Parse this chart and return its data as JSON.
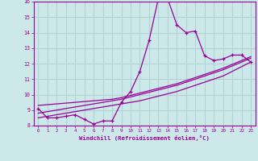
{
  "x": [
    0,
    1,
    2,
    3,
    4,
    5,
    6,
    7,
    8,
    9,
    10,
    11,
    12,
    13,
    14,
    15,
    16,
    17,
    18,
    19,
    20,
    21,
    22,
    23
  ],
  "y_main": [
    9.1,
    8.5,
    8.5,
    8.6,
    8.7,
    8.4,
    8.1,
    8.3,
    8.3,
    9.5,
    10.2,
    11.5,
    13.5,
    16.2,
    16.2,
    14.5,
    14.0,
    14.1,
    12.5,
    12.2,
    12.3,
    12.55,
    12.55,
    12.1
  ],
  "y_linear1": [
    8.5,
    8.6,
    8.7,
    8.8,
    8.9,
    9.0,
    9.1,
    9.2,
    9.3,
    9.4,
    9.5,
    9.6,
    9.75,
    9.9,
    10.05,
    10.2,
    10.4,
    10.6,
    10.8,
    11.0,
    11.2,
    11.5,
    11.8,
    12.1
  ],
  "y_linear2": [
    8.8,
    8.9,
    9.0,
    9.1,
    9.2,
    9.3,
    9.4,
    9.5,
    9.6,
    9.7,
    9.85,
    10.0,
    10.15,
    10.3,
    10.45,
    10.6,
    10.8,
    11.0,
    11.2,
    11.4,
    11.6,
    11.85,
    12.1,
    12.35
  ],
  "y_linear3": [
    9.3,
    9.35,
    9.4,
    9.45,
    9.5,
    9.55,
    9.6,
    9.65,
    9.7,
    9.8,
    9.95,
    10.1,
    10.25,
    10.4,
    10.55,
    10.7,
    10.9,
    11.1,
    11.3,
    11.5,
    11.7,
    11.95,
    12.2,
    12.45
  ],
  "color": "#990099",
  "background": "#cce8e8",
  "grid_color": "#b0d4d4",
  "xlabel": "Windchill (Refroidissement éolien,°C)",
  "ylim": [
    8,
    16
  ],
  "xlim": [
    -0.5,
    23.5
  ],
  "yticks": [
    8,
    9,
    10,
    11,
    12,
    13,
    14,
    15,
    16
  ],
  "xticks": [
    0,
    1,
    2,
    3,
    4,
    5,
    6,
    7,
    8,
    9,
    10,
    11,
    12,
    13,
    14,
    15,
    16,
    17,
    18,
    19,
    20,
    21,
    22,
    23
  ]
}
